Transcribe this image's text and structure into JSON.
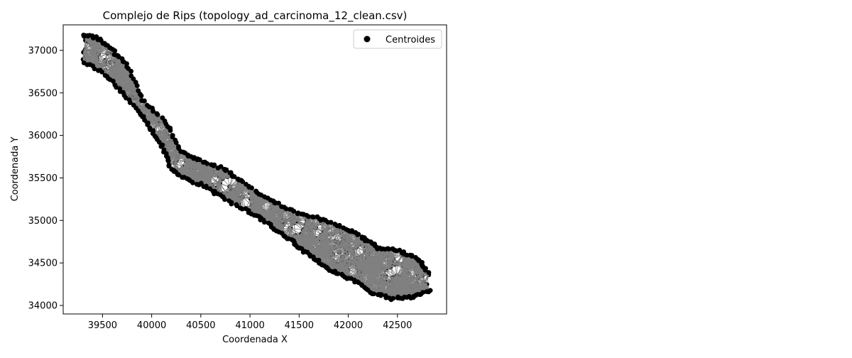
{
  "chart_data": {
    "type": "scatter",
    "title": "Complejo de Rips (topology_ad_carcinoma_12_clean.csv)",
    "xlabel": "Coordenada X",
    "ylabel": "Coordenada Y",
    "xlim": [
      39100,
      43000
    ],
    "ylim": [
      33900,
      37300
    ],
    "xticks": [
      39500,
      40000,
      40500,
      41000,
      41500,
      42000,
      42500
    ],
    "yticks": [
      34000,
      34500,
      35000,
      35500,
      36000,
      36500,
      37000
    ],
    "grid": false,
    "legend": {
      "position": "top-right",
      "entries": [
        {
          "label": "Centroides",
          "marker": "circle",
          "color": "#000000"
        }
      ]
    },
    "edge_color": "#808080",
    "point_color": "#000000",
    "tissue_outline": {
      "description_of_upper_boundary": [
        [
          39300,
          37180
        ],
        [
          39450,
          37150
        ],
        [
          39600,
          37000
        ],
        [
          39750,
          36820
        ],
        [
          39900,
          36420
        ],
        [
          40150,
          36150
        ],
        [
          40300,
          35800
        ],
        [
          40500,
          35700
        ],
        [
          40750,
          35600
        ],
        [
          40950,
          35430
        ],
        [
          41200,
          35250
        ],
        [
          41450,
          35100
        ],
        [
          41700,
          35020
        ],
        [
          41950,
          34920
        ],
        [
          42150,
          34800
        ],
        [
          42300,
          34670
        ],
        [
          42500,
          34650
        ],
        [
          42700,
          34550
        ],
        [
          42820,
          34380
        ]
      ],
      "description_of_lower_boundary": [
        [
          42820,
          34170
        ],
        [
          42650,
          34100
        ],
        [
          42450,
          34080
        ],
        [
          42250,
          34150
        ],
        [
          42050,
          34300
        ],
        [
          41850,
          34400
        ],
        [
          41700,
          34520
        ],
        [
          41550,
          34640
        ],
        [
          41400,
          34780
        ],
        [
          41200,
          34950
        ],
        [
          41000,
          35100
        ],
        [
          40750,
          35250
        ],
        [
          40550,
          35400
        ],
        [
          40350,
          35480
        ],
        [
          40200,
          35600
        ],
        [
          40100,
          35900
        ],
        [
          39950,
          36150
        ],
        [
          39750,
          36450
        ],
        [
          39550,
          36700
        ],
        [
          39300,
          36880
        ]
      ]
    }
  }
}
